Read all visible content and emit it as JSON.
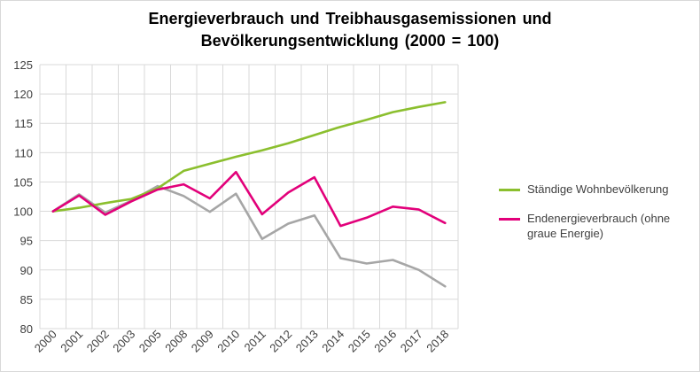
{
  "colors": {
    "population": "#8bbf2e",
    "energy": "#e2007a",
    "emissions": "#a6a6a6",
    "grid": "#d9d9d9",
    "axis_text": "#404040"
  },
  "chart_data": {
    "type": "line",
    "title_lines": [
      "Energieverbrauch und Treibhausgasemissionen und",
      "Bevölkerungsentwicklung (2000 = 100)"
    ],
    "xlabel": "",
    "ylabel": "",
    "ylim": [
      80,
      125
    ],
    "ytick_step": 5,
    "grid": true,
    "legend_position": "right",
    "categories": [
      "2000",
      "2001",
      "2002",
      "2003",
      "2005",
      "2008",
      "2009",
      "2010",
      "2011",
      "2012",
      "2013",
      "2014",
      "2015",
      "2016",
      "2017",
      "2018"
    ],
    "series": [
      {
        "name": "Ständige Wohnbevölkerung",
        "color_key": "population",
        "in_legend": true,
        "values": [
          100.0,
          100.6,
          101.4,
          102.1,
          103.9,
          106.9,
          108.1,
          109.3,
          110.4,
          111.6,
          113.0,
          114.4,
          115.6,
          116.9,
          117.8,
          118.6
        ]
      },
      {
        "name": "Endenergieverbrauch (ohne graue Energie)",
        "color_key": "energy",
        "in_legend": true,
        "values": [
          100.0,
          102.7,
          99.4,
          101.7,
          103.7,
          104.6,
          102.2,
          106.7,
          99.5,
          103.2,
          105.8,
          97.5,
          98.9,
          100.8,
          100.3,
          98.0
        ]
      },
      {
        "name": "",
        "color_key": "emissions",
        "in_legend": false,
        "values": [
          100.0,
          102.9,
          99.8,
          101.8,
          104.3,
          102.6,
          99.9,
          103.0,
          95.3,
          97.9,
          99.3,
          92.0,
          91.1,
          91.7,
          90.0,
          87.2
        ]
      }
    ]
  }
}
